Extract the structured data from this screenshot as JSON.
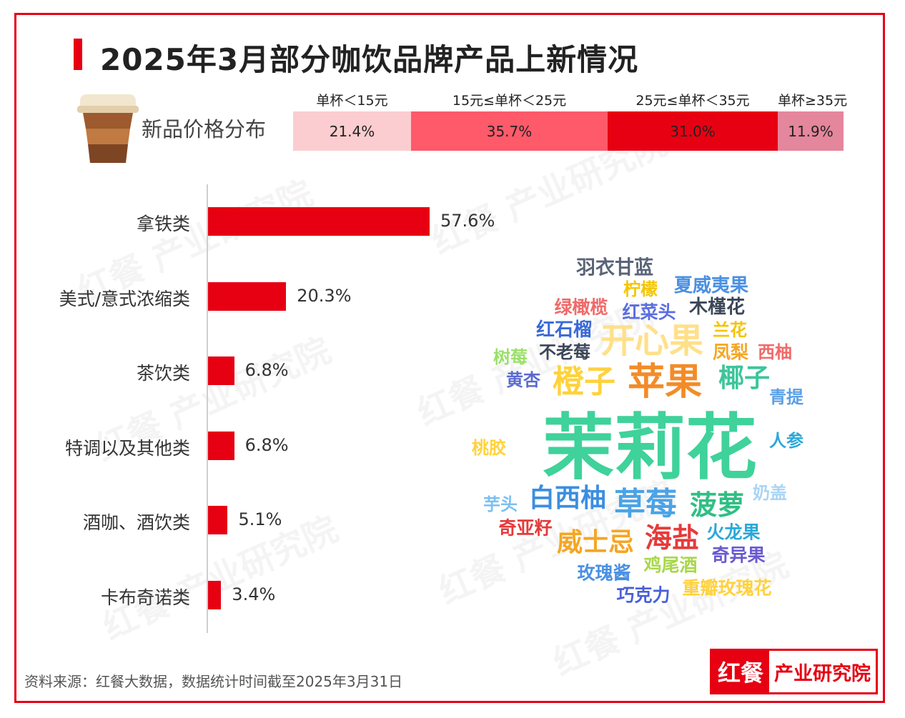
{
  "title": "2025年3月部分咖饮品牌产品上新情况",
  "price_distribution": {
    "label": "新品价格分布",
    "segments": [
      {
        "range": "单杯＜15元",
        "value": "21.4%",
        "color": "#fbcdd0"
      },
      {
        "range": "15元≤单杯＜25元",
        "value": "35.7%",
        "color": "#fe5a6a"
      },
      {
        "range": "25元≤单杯＜35元",
        "value": "31.0%",
        "color": "#e60012"
      },
      {
        "range": "单杯≥35元",
        "value": "11.9%",
        "color": "#e4869c"
      }
    ]
  },
  "chart_data": {
    "type": "bar",
    "orientation": "horizontal",
    "categories": [
      "拿铁类",
      "美式/意式浓缩类",
      "茶饮类",
      "特调以及其他类",
      "酒咖、酒饮类",
      "卡布奇诺类"
    ],
    "values": [
      57.6,
      20.3,
      6.8,
      6.8,
      5.1,
      3.4
    ],
    "value_labels": [
      "57.6%",
      "20.3%",
      "6.8%",
      "6.8%",
      "5.1%",
      "3.4%"
    ],
    "bar_color": "#e60012",
    "grid": false
  },
  "word_cloud": [
    {
      "text": "茉莉花",
      "color": "#3fd29a"
    },
    {
      "text": "苹果",
      "color": "#f28c28"
    },
    {
      "text": "开心果",
      "color": "#ffe08a"
    },
    {
      "text": "橙子",
      "color": "#ffd23c"
    },
    {
      "text": "椰子",
      "color": "#3cc59a"
    },
    {
      "text": "草莓",
      "color": "#4aa3e6"
    },
    {
      "text": "白西柚",
      "color": "#3c8ee0"
    },
    {
      "text": "菠萝",
      "color": "#2fbf84"
    },
    {
      "text": "海盐",
      "color": "#e63a3a"
    },
    {
      "text": "威士忌",
      "color": "#f5a623"
    },
    {
      "text": "羽衣甘蓝",
      "color": "#5a6478"
    },
    {
      "text": "柠檬",
      "color": "#f5c400"
    },
    {
      "text": "夏威夷果",
      "color": "#4a90e2"
    },
    {
      "text": "绿橄榄",
      "color": "#f06a6a"
    },
    {
      "text": "红菜头",
      "color": "#5b6ee0"
    },
    {
      "text": "木槿花",
      "color": "#3c4658"
    },
    {
      "text": "红石榴",
      "color": "#3a6ad6"
    },
    {
      "text": "兰花",
      "color": "#f5c400"
    },
    {
      "text": "不老莓",
      "color": "#3c4658"
    },
    {
      "text": "凤梨",
      "color": "#f5a623"
    },
    {
      "text": "西柚",
      "color": "#f06a6a"
    },
    {
      "text": "树莓",
      "color": "#9be06a"
    },
    {
      "text": "黄杏",
      "color": "#5a6ad0"
    },
    {
      "text": "青提",
      "color": "#5aa0e6"
    },
    {
      "text": "人参",
      "color": "#2aa8d8"
    },
    {
      "text": "桃胶",
      "color": "#ffd23c"
    },
    {
      "text": "芋头",
      "color": "#7ac0f0"
    },
    {
      "text": "奶盖",
      "color": "#a9d4f5"
    },
    {
      "text": "奇亚籽",
      "color": "#e63a3a"
    },
    {
      "text": "火龙果",
      "color": "#2aa8d8"
    },
    {
      "text": "奇异果",
      "color": "#6a5ad0"
    },
    {
      "text": "玫瑰酱",
      "color": "#4a90e2"
    },
    {
      "text": "鸡尾酒",
      "color": "#a8d84a"
    },
    {
      "text": "巧克力",
      "color": "#4a60d8"
    },
    {
      "text": "重瓣玫瑰花",
      "color": "#ffd23c"
    }
  ],
  "watermark": "红餐 产业研究院",
  "source": "资料来源：红餐大数据，数据统计时间截至2025年3月31日",
  "logo": {
    "left": "红餐",
    "right": "产业研究院",
    "color": "#e60012"
  }
}
